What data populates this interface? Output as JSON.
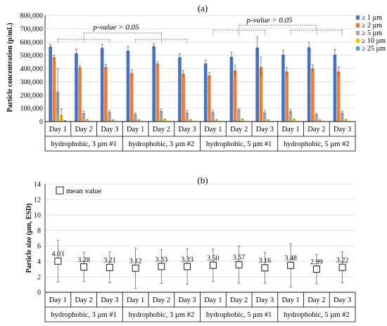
{
  "panel_a": {
    "panel_label": "(a)",
    "ylabel": "Particle concentration (p/mL)",
    "yticks": [
      "0",
      "100,000",
      "200,000",
      "300,000",
      "400,000",
      "500,000",
      "600,000",
      "700,000",
      "800,000"
    ],
    "annotation_left": "p-value > 0.05",
    "annotation_right": "p-value > 0.05",
    "legend": [
      "≥ 1 µm",
      "≥ 2 µm",
      "≥ 5 µm",
      "≥ 10 µm",
      "≥ 25 µm"
    ]
  },
  "panel_b": {
    "panel_label": "(b)",
    "ylabel": "Particle size (µm, ESD)",
    "yticks": [
      "0",
      "2",
      "4",
      "6",
      "8",
      "10",
      "12",
      "14"
    ],
    "legend": "mean value"
  },
  "day_labels": [
    "Day 1",
    "Day 2",
    "Day 3",
    "Day 1",
    "Day 2",
    "Day 3",
    "Day 1",
    "Day 2",
    "Day 3",
    "Day 1",
    "Day 2",
    "Day 3"
  ],
  "group_labels": [
    "hydrophobic, 3 µm #1",
    "hydrophobic, 3 µm #2",
    "hydrophobic, 5 µm #1",
    "hydrophobic, 5 µm #2"
  ],
  "colors": {
    "s1": "#4472c4",
    "s2": "#ed7d31",
    "s5": "#a5a5a5",
    "s10": "#ffc000",
    "s25": "#5b9bd5",
    "axis": "#000000",
    "grid": "#d9d9d9"
  },
  "chart_data": [
    {
      "type": "bar",
      "title": "(a)",
      "ylabel": "Particle concentration (p/mL)",
      "ylim": [
        0,
        800000
      ],
      "grid": "horizontal",
      "legend_position": "top-right",
      "categories": [
        "Day 1",
        "Day 2",
        "Day 3",
        "Day 1",
        "Day 2",
        "Day 3",
        "Day 1",
        "Day 2",
        "Day 3",
        "Day 1",
        "Day 2",
        "Day 3"
      ],
      "groups": [
        "hydrophobic, 3 µm #1",
        "hydrophobic, 3 µm #2",
        "hydrophobic, 5 µm #1",
        "hydrophobic, 5 µm #2"
      ],
      "series": [
        {
          "name": "≥ 1 µm",
          "values": [
            565000,
            515000,
            555000,
            535000,
            568000,
            485000,
            438000,
            488000,
            558000,
            505000,
            560000,
            505000
          ],
          "errors": [
            18000,
            30000,
            25000,
            30000,
            20000,
            25000,
            25000,
            35000,
            80000,
            35000,
            35000,
            40000
          ]
        },
        {
          "name": "≥ 2 µm",
          "values": [
            485000,
            408000,
            412000,
            365000,
            438000,
            360000,
            348000,
            385000,
            412000,
            378000,
            402000,
            378000
          ],
          "errors": [
            15000,
            15000,
            20000,
            25000,
            15000,
            25000,
            20000,
            40000,
            75000,
            30000,
            25000,
            35000
          ]
        },
        {
          "name": "≥ 5 µm",
          "values": [
            225000,
            65000,
            70000,
            55000,
            80000,
            68000,
            70000,
            90000,
            68000,
            78000,
            55000,
            65000
          ],
          "errors": [
            175000,
            15000,
            10000,
            10000,
            15000,
            15000,
            15000,
            10000,
            15000,
            15000,
            8000,
            15000
          ]
        },
        {
          "name": "≥ 10 µm",
          "values": [
            50000,
            12000,
            10000,
            10000,
            15000,
            12000,
            12000,
            15000,
            10000,
            15000,
            10000,
            12000
          ],
          "errors": [
            45000,
            5000,
            4000,
            4000,
            5000,
            4000,
            4000,
            5000,
            4000,
            5000,
            4000,
            4000
          ]
        },
        {
          "name": "≥ 25 µm",
          "values": [
            5000,
            1000,
            1000,
            1000,
            1000,
            1000,
            1000,
            1000,
            1000,
            1000,
            1000,
            1000
          ],
          "errors": [
            3000,
            500,
            500,
            500,
            500,
            500,
            500,
            500,
            500,
            500,
            500,
            500
          ]
        }
      ],
      "annotations": [
        "p-value > 0.05",
        "p-value > 0.05"
      ]
    },
    {
      "type": "scatter",
      "title": "(b)",
      "ylabel": "Particle size (µm, ESD)",
      "ylim": [
        0,
        14
      ],
      "grid": "horizontal",
      "legend_position": "top-left",
      "categories": [
        "Day 1",
        "Day 2",
        "Day 3",
        "Day 1",
        "Day 2",
        "Day 3",
        "Day 1",
        "Day 2",
        "Day 3",
        "Day 1",
        "Day 2",
        "Day 3"
      ],
      "groups": [
        "hydrophobic, 3 µm #1",
        "hydrophobic, 3 µm #2",
        "hydrophobic, 5 µm #1",
        "hydrophobic, 5 µm #2"
      ],
      "series": [
        {
          "name": "mean value",
          "values": [
            4.03,
            3.28,
            3.21,
            3.12,
            3.33,
            3.33,
            3.5,
            3.57,
            3.16,
            3.48,
            2.99,
            3.22
          ],
          "labels": [
            "4.03",
            "3.28",
            "3.21",
            "3.12",
            "3.33",
            "3.33",
            "3.50",
            "3.57",
            "3.16",
            "3.48",
            "2.99",
            "3.22"
          ],
          "errors": [
            2.7,
            1.9,
            2.0,
            2.6,
            2.2,
            2.3,
            2.1,
            2.4,
            2.0,
            2.8,
            1.9,
            2.0
          ]
        }
      ]
    }
  ]
}
